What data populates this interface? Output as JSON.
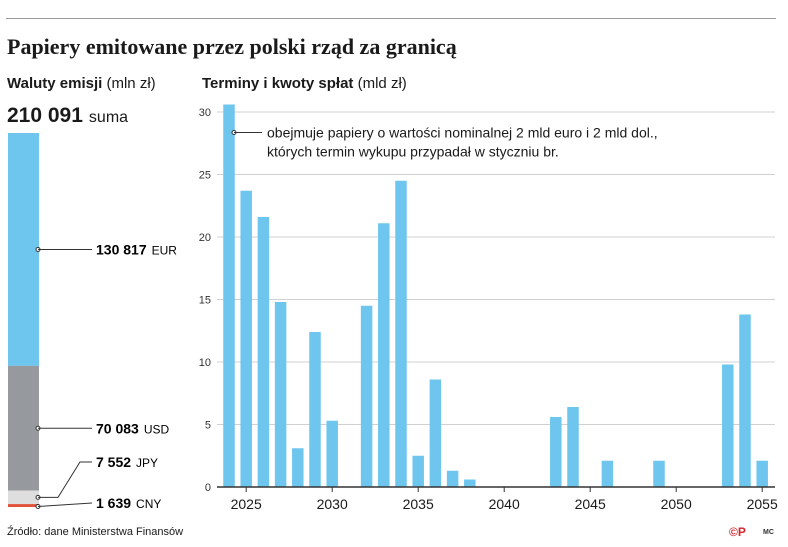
{
  "title": "Papiery emitowane przez polski rząd za granicą",
  "left_panel": {
    "heading_bold": "Waluty emisji",
    "heading_unit": "(mln zł)",
    "total_value": "210 091",
    "total_label": "suma"
  },
  "right_panel": {
    "heading_bold": "Terminy i kwoty spłat",
    "heading_unit": "(mld zł)",
    "annotation_line1": "obejmuje papiery o wartości nominalnej 2 mld euro i 2 mld dol.,",
    "annotation_line2": "których termin wykupu przypadał w styczniu br."
  },
  "source": "Źródło: dane Ministerstwa Finansów",
  "badge": "©P",
  "credit": "MC",
  "colors": {
    "bar": "#6ec6ee",
    "eur": "#6ec6ee",
    "usd": "#96999e",
    "jpy": "#dedede",
    "cny": "#e0533a",
    "grid": "#d0d0d0",
    "axis": "#333333",
    "badge": "#d4262c"
  },
  "chart_data": [
    {
      "type": "bar",
      "subtype": "stacked-single",
      "unit": "mln zł",
      "total": 210091,
      "series": [
        {
          "key": "EUR",
          "value": 130817,
          "label_value": "130 817",
          "label_name": "EUR",
          "color": "#6ec6ee"
        },
        {
          "key": "USD",
          "value": 70083,
          "label_value": "70 083",
          "label_name": "USD",
          "color": "#96999e"
        },
        {
          "key": "JPY",
          "value": 7552,
          "label_value": "7 552",
          "label_name": "JPY",
          "color": "#dedede"
        },
        {
          "key": "CNY",
          "value": 1639,
          "label_value": "1 639",
          "label_name": "CNY",
          "color": "#e0533a"
        }
      ]
    },
    {
      "type": "bar",
      "unit": "mld zł",
      "ylim": [
        0,
        31
      ],
      "yticks": [
        0,
        5,
        10,
        15,
        20,
        25,
        30
      ],
      "xlim": [
        2023.5,
        2055.5
      ],
      "xticks": [
        2025,
        2030,
        2035,
        2040,
        2045,
        2050,
        2055
      ],
      "grid": true,
      "annotation_year": 2024,
      "x": [
        2024,
        2025,
        2026,
        2027,
        2028,
        2029,
        2030,
        2032,
        2033,
        2034,
        2035,
        2036,
        2037,
        2038,
        2043,
        2044,
        2046,
        2049,
        2053,
        2054,
        2055
      ],
      "values": [
        30.6,
        23.7,
        21.6,
        14.8,
        3.1,
        12.4,
        5.3,
        14.5,
        21.1,
        24.5,
        2.5,
        8.6,
        1.3,
        0.6,
        5.6,
        6.4,
        2.1,
        2.1,
        9.8,
        13.8,
        2.1
      ]
    }
  ]
}
